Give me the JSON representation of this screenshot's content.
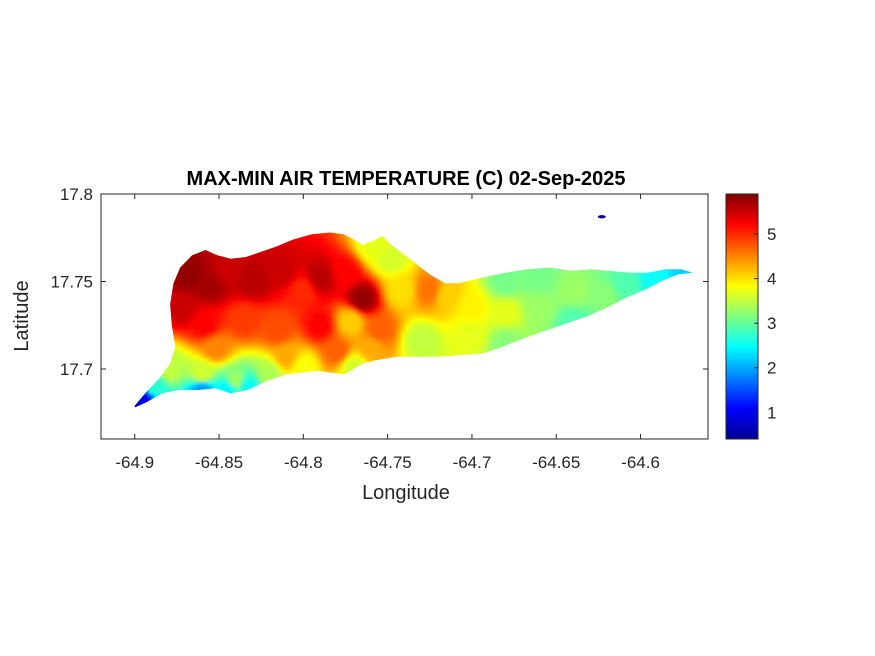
{
  "chart_data": {
    "type": "heatmap",
    "title": "MAX-MIN AIR TEMPERATURE (C) 02-Sep-2025",
    "xlabel": "Longitude",
    "ylabel": "Latitude",
    "xlim": [
      -64.92,
      -64.56
    ],
    "ylim": [
      17.66,
      17.8
    ],
    "xticks": [
      -64.9,
      -64.85,
      -64.8,
      -64.75,
      -64.7,
      -64.65,
      -64.6
    ],
    "xtick_labels": [
      "-64.9",
      "-64.85",
      "-64.8",
      "-64.75",
      "-64.7",
      "-64.65",
      "-64.6"
    ],
    "yticks": [
      17.7,
      17.75,
      17.8
    ],
    "ytick_labels": [
      "17.7",
      "17.75",
      "17.8"
    ],
    "colorbar": {
      "colormap": "jet",
      "range": [
        0.4,
        5.9
      ],
      "ticks": [
        1,
        2,
        3,
        4,
        5
      ],
      "tick_labels": [
        "1",
        "2",
        "3",
        "4",
        "5"
      ],
      "stops": [
        "#00008f",
        "#0000ff",
        "#0080ff",
        "#00ffff",
        "#80ff80",
        "#ffff00",
        "#ff8000",
        "#ff0000",
        "#800000"
      ]
    },
    "island_outline": [
      [
        -64.9,
        17.679
      ],
      [
        -64.893,
        17.687
      ],
      [
        -64.886,
        17.694
      ],
      [
        -64.879,
        17.703
      ],
      [
        -64.876,
        17.713
      ],
      [
        -64.878,
        17.725
      ],
      [
        -64.879,
        17.737
      ],
      [
        -64.877,
        17.749
      ],
      [
        -64.873,
        17.758
      ],
      [
        -64.866,
        17.765
      ],
      [
        -64.858,
        17.768
      ],
      [
        -64.851,
        17.765
      ],
      [
        -64.843,
        17.763
      ],
      [
        -64.834,
        17.764
      ],
      [
        -64.825,
        17.767
      ],
      [
        -64.816,
        17.77
      ],
      [
        -64.806,
        17.774
      ],
      [
        -64.795,
        17.777
      ],
      [
        -64.784,
        17.778
      ],
      [
        -64.776,
        17.777
      ],
      [
        -64.77,
        17.774
      ],
      [
        -64.765,
        17.771
      ],
      [
        -64.759,
        17.773
      ],
      [
        -64.753,
        17.776
      ],
      [
        -64.748,
        17.771
      ],
      [
        -64.741,
        17.766
      ],
      [
        -64.733,
        17.76
      ],
      [
        -64.725,
        17.754
      ],
      [
        -64.716,
        17.749
      ],
      [
        -64.708,
        17.749
      ],
      [
        -64.699,
        17.751
      ],
      [
        -64.69,
        17.753
      ],
      [
        -64.68,
        17.755
      ],
      [
        -64.667,
        17.757
      ],
      [
        -64.654,
        17.758
      ],
      [
        -64.641,
        17.756
      ],
      [
        -64.63,
        17.757
      ],
      [
        -64.618,
        17.756
      ],
      [
        -64.606,
        17.755
      ],
      [
        -64.596,
        17.755
      ],
      [
        -64.585,
        17.757
      ],
      [
        -64.576,
        17.757
      ],
      [
        -64.569,
        17.755
      ],
      [
        -64.578,
        17.754
      ],
      [
        -64.588,
        17.75
      ],
      [
        -64.598,
        17.745
      ],
      [
        -64.608,
        17.741
      ],
      [
        -64.62,
        17.735
      ],
      [
        -64.632,
        17.73
      ],
      [
        -64.644,
        17.726
      ],
      [
        -64.656,
        17.722
      ],
      [
        -64.668,
        17.718
      ],
      [
        -64.681,
        17.713
      ],
      [
        -64.693,
        17.709
      ],
      [
        -64.706,
        17.708
      ],
      [
        -64.719,
        17.707
      ],
      [
        -64.732,
        17.707
      ],
      [
        -64.745,
        17.707
      ],
      [
        -64.757,
        17.705
      ],
      [
        -64.765,
        17.703
      ],
      [
        -64.77,
        17.7
      ],
      [
        -64.776,
        17.697
      ],
      [
        -64.784,
        17.698
      ],
      [
        -64.792,
        17.699
      ],
      [
        -64.8,
        17.698
      ],
      [
        -64.81,
        17.697
      ],
      [
        -64.822,
        17.693
      ],
      [
        -64.833,
        17.688
      ],
      [
        -64.843,
        17.686
      ],
      [
        -64.852,
        17.689
      ],
      [
        -64.862,
        17.688
      ],
      [
        -64.874,
        17.688
      ],
      [
        -64.884,
        17.686
      ],
      [
        -64.893,
        17.681
      ],
      [
        -64.9,
        17.678
      ]
    ],
    "islet": [
      -64.623,
      17.787
    ],
    "control_points": [
      [
        -64.868,
        17.754,
        5.8
      ],
      [
        -64.855,
        17.748,
        5.7
      ],
      [
        -64.872,
        17.735,
        5.5
      ],
      [
        -64.845,
        17.756,
        5.5
      ],
      [
        -64.83,
        17.75,
        5.6
      ],
      [
        -64.812,
        17.756,
        5.5
      ],
      [
        -64.79,
        17.752,
        5.6
      ],
      [
        -64.775,
        17.755,
        5.2
      ],
      [
        -64.765,
        17.74,
        5.8
      ],
      [
        -64.8,
        17.745,
        5.0
      ],
      [
        -64.858,
        17.725,
        5.2
      ],
      [
        -64.835,
        17.728,
        4.9
      ],
      [
        -64.815,
        17.722,
        4.8
      ],
      [
        -64.79,
        17.725,
        5.2
      ],
      [
        -64.772,
        17.727,
        4.1
      ],
      [
        -64.755,
        17.722,
        4.7
      ],
      [
        -64.852,
        17.712,
        4.5
      ],
      [
        -64.81,
        17.707,
        4.3
      ],
      [
        -64.78,
        17.71,
        4.7
      ],
      [
        -64.76,
        17.712,
        4.3
      ],
      [
        -64.742,
        17.745,
        4.0
      ],
      [
        -64.748,
        17.763,
        3.6
      ],
      [
        -64.758,
        17.77,
        3.7
      ],
      [
        -64.725,
        17.745,
        4.6
      ],
      [
        -64.715,
        17.742,
        4.1
      ],
      [
        -64.7,
        17.735,
        3.9
      ],
      [
        -64.7,
        17.72,
        3.7
      ],
      [
        -64.73,
        17.716,
        3.5
      ],
      [
        -64.68,
        17.732,
        3.7
      ],
      [
        -64.66,
        17.735,
        3.3
      ],
      [
        -64.64,
        17.744,
        3.3
      ],
      [
        -64.62,
        17.742,
        3.2
      ],
      [
        -64.61,
        17.748,
        2.9
      ],
      [
        -64.59,
        17.752,
        2.5
      ],
      [
        -64.575,
        17.756,
        2.2
      ],
      [
        -64.66,
        17.752,
        3.1
      ],
      [
        -64.68,
        17.75,
        3.1
      ],
      [
        -64.64,
        17.727,
        2.9
      ],
      [
        -64.68,
        17.715,
        3.2
      ],
      [
        -64.88,
        17.7,
        3.5
      ],
      [
        -64.86,
        17.697,
        3.6
      ],
      [
        -64.84,
        17.693,
        3.3
      ],
      [
        -64.82,
        17.697,
        3.4
      ],
      [
        -64.8,
        17.701,
        3.8
      ],
      [
        -64.77,
        17.701,
        3.6
      ],
      [
        -64.86,
        17.688,
        1.9
      ],
      [
        -64.845,
        17.688,
        2.4
      ],
      [
        -64.888,
        17.69,
        2.7
      ],
      [
        -64.895,
        17.682,
        1.0
      ],
      [
        -64.9,
        17.679,
        0.5
      ],
      [
        -64.833,
        17.69,
        2.5
      ]
    ]
  }
}
